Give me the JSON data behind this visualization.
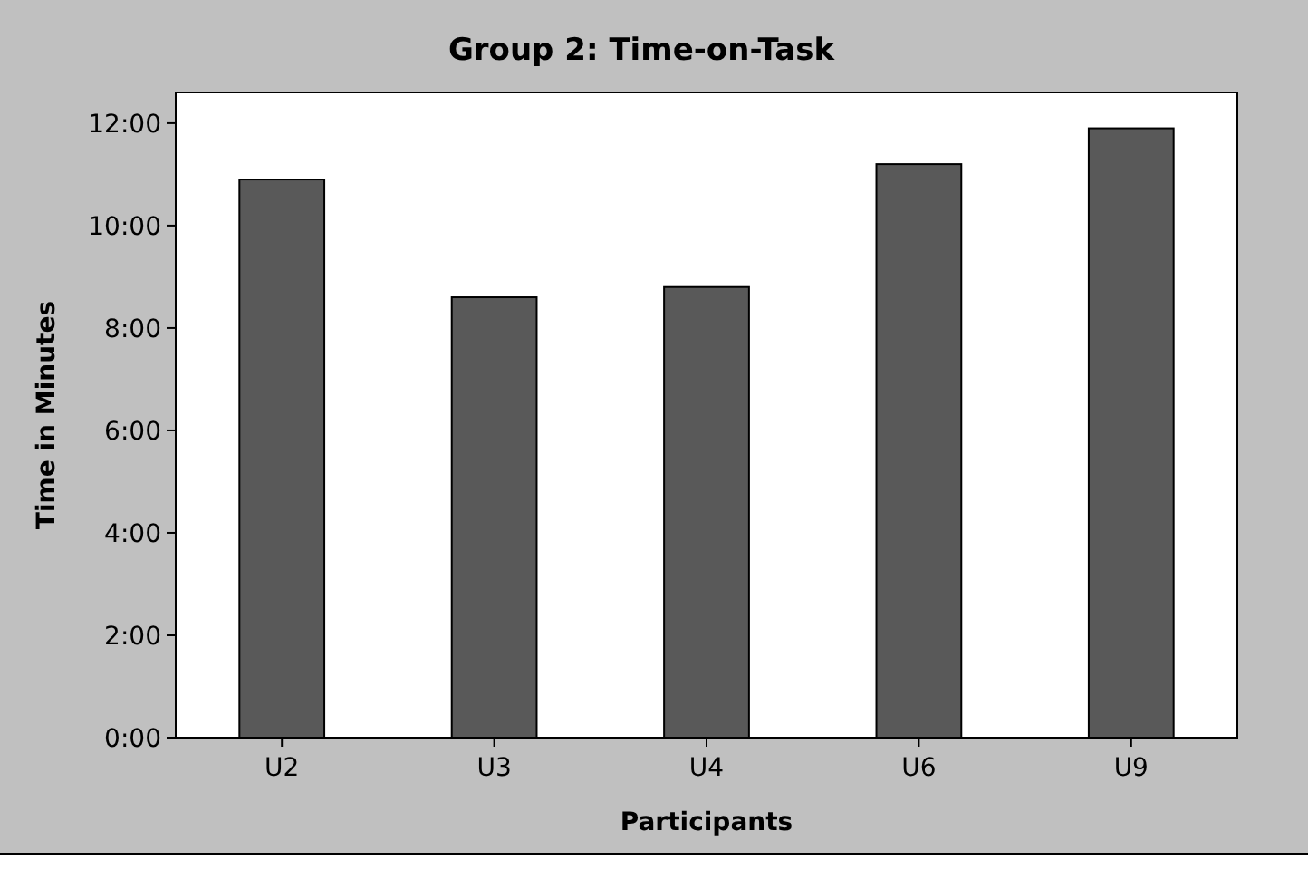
{
  "chart_data": {
    "type": "bar",
    "title": "Group 2: Time-on-Task",
    "xlabel": "Participants",
    "ylabel": "Time in Minutes",
    "categories": [
      "U2",
      "U3",
      "U4",
      "U6",
      "U9"
    ],
    "values": [
      10.9,
      8.6,
      8.8,
      11.2,
      11.9
    ],
    "color": "#595959",
    "ylim": [
      0,
      12.6
    ],
    "yticks": [
      {
        "value": 0,
        "label": "0:00"
      },
      {
        "value": 2,
        "label": "2:00"
      },
      {
        "value": 4,
        "label": "4:00"
      },
      {
        "value": 6,
        "label": "6:00"
      },
      {
        "value": 8,
        "label": "8:00"
      },
      {
        "value": 10,
        "label": "10:00"
      },
      {
        "value": 12,
        "label": "12:00"
      }
    ],
    "grid": false
  }
}
